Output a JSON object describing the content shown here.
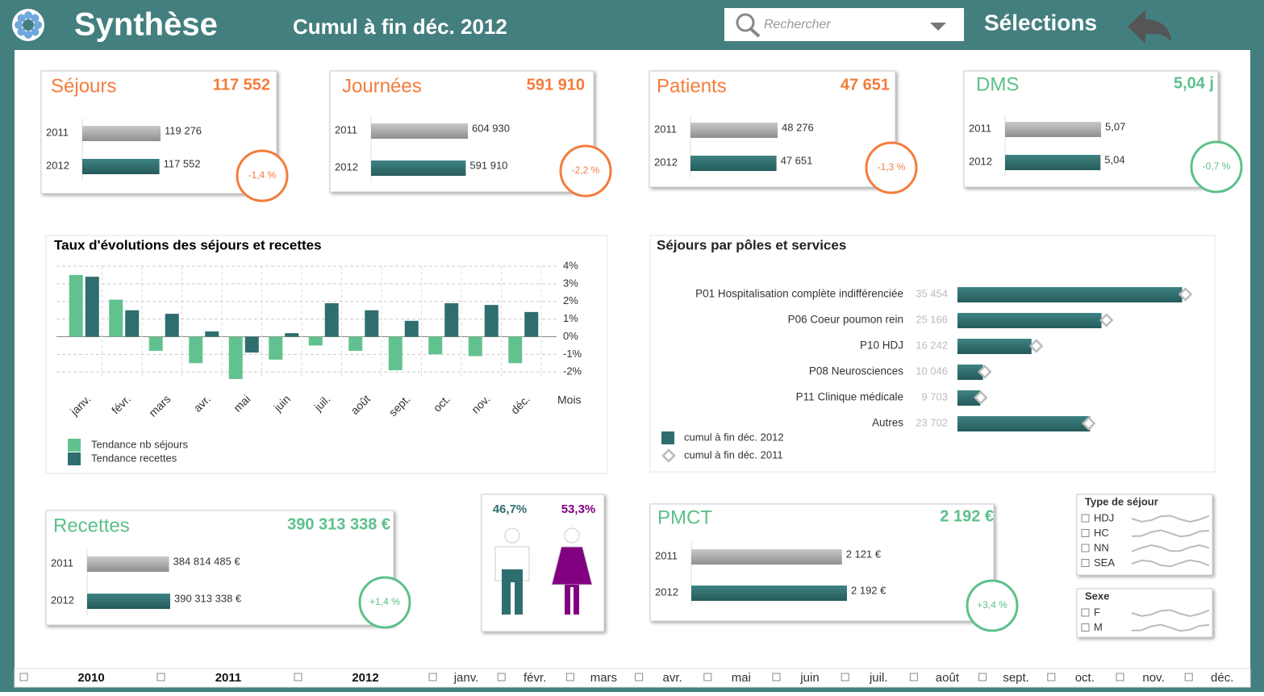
{
  "header": {
    "title": "Synthèse",
    "subtitle": "Cumul à fin déc. 2012",
    "search": "Rechercher",
    "selections": "Sélections"
  },
  "kpis": [
    {
      "title": "Séjours",
      "total": "117 552",
      "color": "#f47c3c",
      "change": "-1,4 %",
      "rows": [
        {
          "year": "2011",
          "value": 119276,
          "label": "119 276"
        },
        {
          "year": "2012",
          "value": 117552,
          "label": "117 552"
        }
      ]
    },
    {
      "title": "Journées",
      "total": "591 910",
      "color": "#f47c3c",
      "change": "-2,2 %",
      "rows": [
        {
          "year": "2011",
          "value": 604930,
          "label": "604 930"
        },
        {
          "year": "2012",
          "value": 591910,
          "label": "591 910"
        }
      ]
    },
    {
      "title": "Patients",
      "total": "47 651",
      "color": "#f47c3c",
      "change": "-1,3 %",
      "rows": [
        {
          "year": "2011",
          "value": 48276,
          "label": "48 276"
        },
        {
          "year": "2012",
          "value": 47651,
          "label": "47 651"
        }
      ]
    },
    {
      "title": "DMS",
      "total": "5,04 j",
      "color": "#5cc08a",
      "change": "-0,7 %",
      "rows": [
        {
          "year": "2011",
          "value": 5.07,
          "label": "5,07"
        },
        {
          "year": "2012",
          "value": 5.04,
          "label": "5,04"
        }
      ]
    },
    {
      "title": "Recettes",
      "total": "390 313 338 €",
      "color": "#5cc08a",
      "change": "+1,4 %",
      "rows": [
        {
          "year": "2011",
          "value": 384814485,
          "label": "384 814 485 €"
        },
        {
          "year": "2012",
          "value": 390313338,
          "label": "390 313 338 €"
        }
      ]
    },
    {
      "title": "PMCT",
      "total": "2 192 €",
      "color": "#5cc08a",
      "change": "+3,4 %",
      "rows": [
        {
          "year": "2011",
          "value": 2121,
          "label": "2 121 €"
        },
        {
          "year": "2012",
          "value": 2192,
          "label": "2 192 €"
        }
      ]
    }
  ],
  "chart_data": [
    {
      "type": "bar",
      "title": "Taux d'évolutions des séjours et recettes",
      "x_label": "Mois",
      "categories": [
        "janv.",
        "févr.",
        "mars",
        "avr.",
        "mai",
        "juin",
        "juil.",
        "août",
        "sept.",
        "oct.",
        "nov.",
        "déc."
      ],
      "series": [
        {
          "name": "Tendance nb séjours",
          "color": "#62c28f",
          "values": [
            3.5,
            2.1,
            -0.8,
            -1.5,
            -2.4,
            -1.3,
            -0.5,
            -0.8,
            -1.9,
            -1.0,
            -1.1,
            -1.5
          ]
        },
        {
          "name": "Tendance recettes",
          "color": "#2f6e6e",
          "values": [
            3.4,
            1.5,
            1.3,
            0.3,
            -0.9,
            0.2,
            1.9,
            1.5,
            0.9,
            1.9,
            1.8,
            1.4
          ]
        }
      ],
      "ylim": [
        -2.4,
        4
      ],
      "grid": true,
      "yticks": [
        {
          "value": 4,
          "label": "4%"
        },
        {
          "value": 3,
          "label": "3%"
        },
        {
          "value": 2,
          "label": "2%"
        },
        {
          "value": 1,
          "label": "1%"
        },
        {
          "value": 0,
          "label": "0%"
        },
        {
          "value": -1,
          "label": "-1%"
        },
        {
          "value": -2,
          "label": "-2%"
        }
      ]
    },
    {
      "type": "hbar",
      "title": "Séjours par pôles et services",
      "categories": [
        "P01 Hospitalisation complète indifférenciée",
        "P06 Coeur poumon rein",
        "P10 HDJ",
        "P08 Neurosciences",
        "P11 Clinique médicale",
        "Autres"
      ],
      "series": [
        {
          "name": "cumul à fin déc. 2012",
          "color": "#2f6e6e",
          "values": [
            35454,
            25166,
            16242,
            10046,
            9703,
            23702
          ],
          "value_labels": [
            "35 454",
            "25 166",
            "16 242",
            "10 046",
            "9 703",
            "23 702"
          ]
        },
        {
          "name": "cumul à fin déc. 2011",
          "color": "#bbbbbb",
          "values": [
            35870,
            25800,
            16850,
            10280,
            9760,
            23530
          ]
        }
      ],
      "xlim": [
        6800,
        39000
      ]
    }
  ],
  "gender": {
    "male": "46,7%",
    "female": "53,3%"
  },
  "filters": [
    {
      "title": "Type de séjour",
      "items": [
        "HDJ",
        "HC",
        "NN",
        "SEA"
      ]
    },
    {
      "title": "Sexe",
      "items": [
        "F",
        "M"
      ]
    }
  ],
  "timeline": {
    "years": [
      "2010",
      "2011",
      "2012"
    ],
    "months": [
      "janv.",
      "févr.",
      "mars",
      "avr.",
      "mai",
      "juin",
      "juil.",
      "août",
      "sept.",
      "oct.",
      "nov.",
      "déc."
    ]
  }
}
